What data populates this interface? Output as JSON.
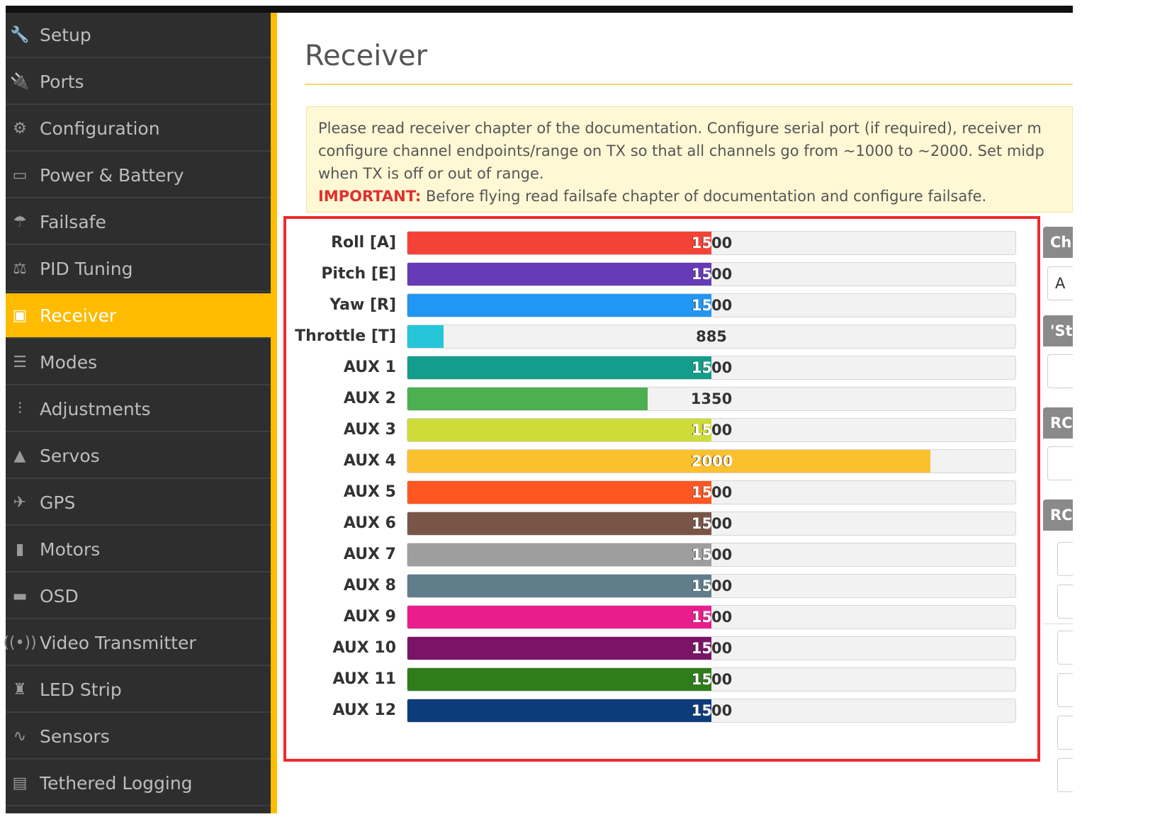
{
  "sidebar": {
    "items": [
      {
        "label": "Setup",
        "icon": "wrench-icon",
        "glyph": "🔧",
        "active": false
      },
      {
        "label": "Ports",
        "icon": "plug-icon",
        "glyph": "🔌",
        "active": false
      },
      {
        "label": "Configuration",
        "icon": "gear-icon",
        "glyph": "⚙",
        "active": false
      },
      {
        "label": "Power & Battery",
        "icon": "battery-icon",
        "glyph": "▭",
        "active": false
      },
      {
        "label": "Failsafe",
        "icon": "parachute-icon",
        "glyph": "☂",
        "active": false
      },
      {
        "label": "PID Tuning",
        "icon": "pid-icon",
        "glyph": "⚖",
        "active": false
      },
      {
        "label": "Receiver",
        "icon": "receiver-icon",
        "glyph": "▣",
        "active": true
      },
      {
        "label": "Modes",
        "icon": "modes-icon",
        "glyph": "☰",
        "active": false
      },
      {
        "label": "Adjustments",
        "icon": "sliders-icon",
        "glyph": "⫶",
        "active": false
      },
      {
        "label": "Servos",
        "icon": "servo-icon",
        "glyph": "▲",
        "active": false
      },
      {
        "label": "GPS",
        "icon": "satellite-icon",
        "glyph": "✈",
        "active": false
      },
      {
        "label": "Motors",
        "icon": "motor-icon",
        "glyph": "▮",
        "active": false
      },
      {
        "label": "OSD",
        "icon": "osd-icon",
        "glyph": "▬",
        "active": false
      },
      {
        "label": "Video Transmitter",
        "icon": "antenna-icon",
        "glyph": "((•))",
        "active": false
      },
      {
        "label": "LED Strip",
        "icon": "led-icon",
        "glyph": "♜",
        "active": false
      },
      {
        "label": "Sensors",
        "icon": "pulse-icon",
        "glyph": "∿",
        "active": false
      },
      {
        "label": "Tethered Logging",
        "icon": "log-icon",
        "glyph": "▤",
        "active": false
      }
    ]
  },
  "main": {
    "title": "Receiver",
    "notice_lines": [
      "Please read receiver chapter of the documentation. Configure serial port (if required), receiver m",
      "configure channel endpoints/range on TX so that all channels go from ~1000 to ~2000. Set midp",
      "when TX is off or out of range."
    ],
    "important_label": "IMPORTANT:",
    "important_text": " Before flying read failsafe chapter of documentation and configure failsafe."
  },
  "channels": [
    {
      "label": "Roll [A]",
      "value": "1500",
      "fraction": 0.5,
      "color": "#f44336"
    },
    {
      "label": "Pitch [E]",
      "value": "1500",
      "fraction": 0.5,
      "color": "#673ab7"
    },
    {
      "label": "Yaw [R]",
      "value": "1500",
      "fraction": 0.5,
      "color": "#2196f3"
    },
    {
      "label": "Throttle [T]",
      "value": "885",
      "fraction": 0.06,
      "color": "#26c6da"
    },
    {
      "label": "AUX 1",
      "value": "1500",
      "fraction": 0.5,
      "color": "#129e8a"
    },
    {
      "label": "AUX 2",
      "value": "1350",
      "fraction": 0.395,
      "color": "#4caf50"
    },
    {
      "label": "AUX 3",
      "value": "1500",
      "fraction": 0.5,
      "color": "#cddc39"
    },
    {
      "label": "AUX 4",
      "value": "2000",
      "fraction": 0.86,
      "color": "#fbc02d"
    },
    {
      "label": "AUX 5",
      "value": "1500",
      "fraction": 0.5,
      "color": "#ff5722"
    },
    {
      "label": "AUX 6",
      "value": "1500",
      "fraction": 0.5,
      "color": "#795548"
    },
    {
      "label": "AUX 7",
      "value": "1500",
      "fraction": 0.5,
      "color": "#9e9e9e"
    },
    {
      "label": "AUX 8",
      "value": "1500",
      "fraction": 0.5,
      "color": "#607d8b"
    },
    {
      "label": "AUX 9",
      "value": "1500",
      "fraction": 0.5,
      "color": "#e91e8c"
    },
    {
      "label": "AUX 10",
      "value": "1500",
      "fraction": 0.5,
      "color": "#7b1466"
    },
    {
      "label": "AUX 11",
      "value": "1500",
      "fraction": 0.5,
      "color": "#2e7d1a"
    },
    {
      "label": "AUX 12",
      "value": "1500",
      "fraction": 0.5,
      "color": "#0d3c7a"
    }
  ],
  "right_panel": {
    "head1": "Ch",
    "box1": "A",
    "head2": "'St",
    "head3": "RC",
    "head4": "RC"
  }
}
